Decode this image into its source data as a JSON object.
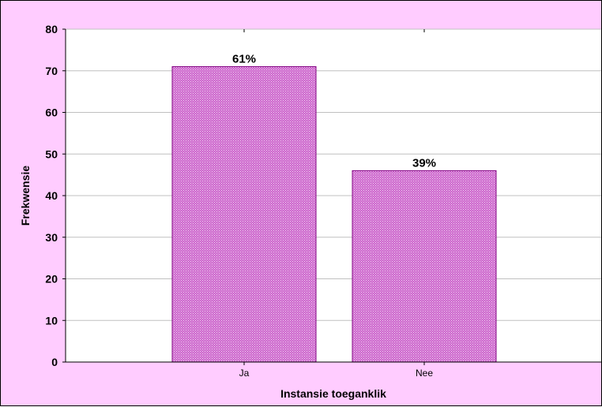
{
  "chart_data": {
    "type": "bar",
    "categories": [
      "Ja",
      "Nee"
    ],
    "values": [
      71,
      46
    ],
    "data_labels": [
      "61%",
      "39%"
    ],
    "title": "",
    "xlabel": "Instansie toeganklik",
    "ylabel": "Frekwensie",
    "ylim": [
      0,
      80
    ],
    "yticks": [
      "0",
      "10",
      "20",
      "30",
      "40",
      "50",
      "60",
      "70",
      "80"
    ],
    "grid": true,
    "legend": "none"
  },
  "colors": {
    "background": "#ffccff",
    "plot_background": "#ffffff",
    "bar_fill": "#cc66cc",
    "bar_dot": "#f4d4f4",
    "bar_edge": "#800080",
    "gridline": "#c0c0c0"
  }
}
